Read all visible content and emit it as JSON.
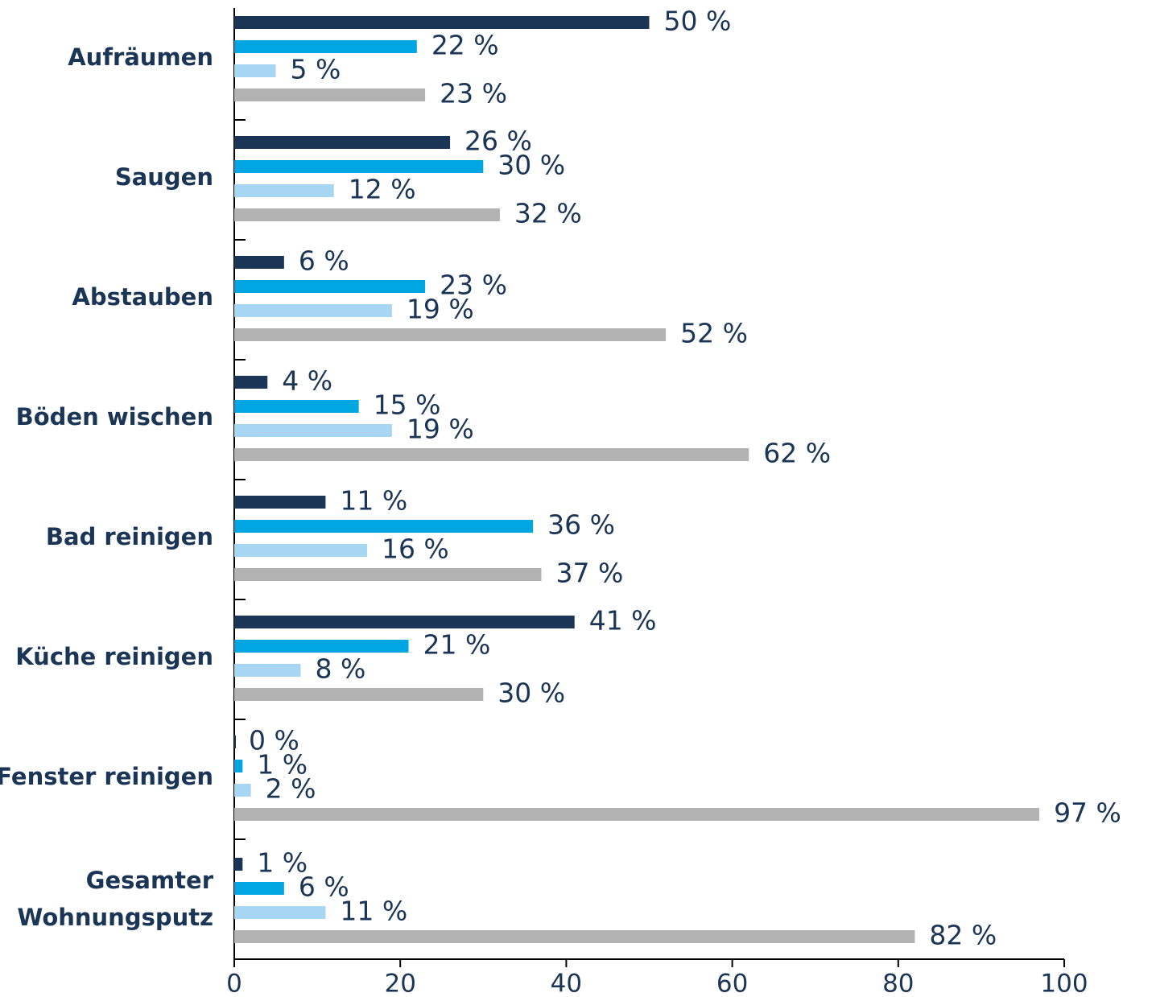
{
  "chart_data": {
    "type": "bar",
    "orientation": "horizontal",
    "categories": [
      "Aufräumen",
      "Saugen",
      "Abstauben",
      "Böden wischen",
      "Bad reinigen",
      "Küche reinigen",
      "Fenster reinigen",
      "Gesamter Wohnungsputz"
    ],
    "series": [
      {
        "color": "#1b3556",
        "values": [
          50,
          26,
          6,
          4,
          11,
          41,
          0,
          1
        ],
        "value_labels": [
          "50 %",
          "26 %",
          "6 %",
          "4 %",
          "11 %",
          "41 %",
          "0 %",
          "1 %"
        ]
      },
      {
        "color": "#00a6e2",
        "values": [
          22,
          30,
          23,
          15,
          36,
          21,
          1,
          6
        ],
        "value_labels": [
          "22 %",
          "30 %",
          "23 %",
          "15 %",
          "36 %",
          "21 %",
          "1 %",
          "6 %"
        ]
      },
      {
        "color": "#a7d6f3",
        "values": [
          5,
          12,
          19,
          19,
          16,
          8,
          2,
          11
        ],
        "value_labels": [
          "5 %",
          "12 %",
          "19 %",
          "19 %",
          "16 %",
          "8 %",
          "2 %",
          "11 %"
        ]
      },
      {
        "color": "#b3b3b3",
        "values": [
          23,
          32,
          52,
          62,
          37,
          30,
          97,
          82
        ],
        "value_labels": [
          "23 %",
          "32 %",
          "52 %",
          "62 %",
          "37 %",
          "30 %",
          "97 %",
          "82 %"
        ]
      }
    ],
    "xlim": [
      0,
      100
    ],
    "xticks": [
      0,
      20,
      40,
      60,
      80,
      100
    ]
  }
}
